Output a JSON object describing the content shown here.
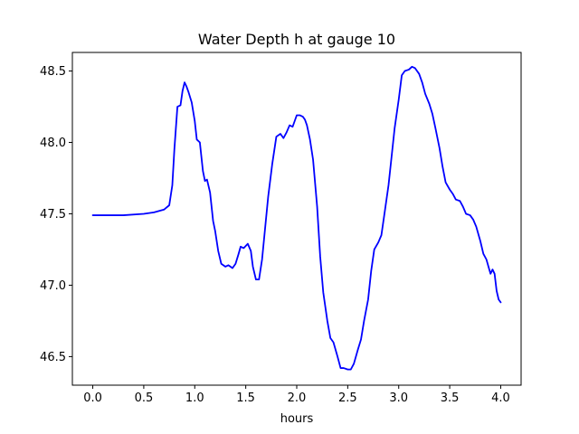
{
  "chart_data": {
    "type": "line",
    "title": "Water Depth h at gauge 10",
    "xlabel": "hours",
    "ylabel": "",
    "xlim": [
      -0.2,
      4.2
    ],
    "ylim": [
      46.3,
      48.63
    ],
    "xticks": [
      0.0,
      0.5,
      1.0,
      1.5,
      2.0,
      2.5,
      3.0,
      3.5,
      4.0
    ],
    "xtick_labels": [
      "0.0",
      "0.5",
      "1.0",
      "1.5",
      "2.0",
      "2.5",
      "3.0",
      "3.5",
      "4.0"
    ],
    "yticks": [
      46.5,
      47.0,
      47.5,
      48.0,
      48.5
    ],
    "ytick_labels": [
      "46.5",
      "47.0",
      "47.5",
      "48.0",
      "48.5"
    ],
    "grid": false,
    "series": [
      {
        "color": "#0000ff",
        "x": [
          0.0,
          0.3,
          0.5,
          0.6,
          0.7,
          0.75,
          0.78,
          0.8,
          0.83,
          0.86,
          0.88,
          0.9,
          0.92,
          0.94,
          0.97,
          1.0,
          1.02,
          1.05,
          1.08,
          1.1,
          1.12,
          1.15,
          1.18,
          1.2,
          1.23,
          1.26,
          1.3,
          1.33,
          1.37,
          1.4,
          1.43,
          1.45,
          1.48,
          1.52,
          1.55,
          1.57,
          1.6,
          1.63,
          1.66,
          1.69,
          1.72,
          1.76,
          1.8,
          1.84,
          1.87,
          1.9,
          1.93,
          1.96,
          2.0,
          2.03,
          2.06,
          2.08,
          2.1,
          2.13,
          2.16,
          2.2,
          2.23,
          2.26,
          2.3,
          2.33,
          2.36,
          2.4,
          2.43,
          2.46,
          2.5,
          2.53,
          2.56,
          2.6,
          2.63,
          2.66,
          2.7,
          2.73,
          2.76,
          2.8,
          2.83,
          2.86,
          2.9,
          2.93,
          2.96,
          3.0,
          3.03,
          3.06,
          3.1,
          3.13,
          3.16,
          3.2,
          3.23,
          3.26,
          3.3,
          3.33,
          3.36,
          3.4,
          3.43,
          3.46,
          3.5,
          3.53,
          3.56,
          3.6,
          3.63,
          3.66,
          3.7,
          3.73,
          3.76,
          3.8,
          3.83,
          3.86,
          3.9,
          3.92,
          3.94,
          3.96,
          3.98,
          4.0
        ],
        "y": [
          47.49,
          47.49,
          47.5,
          47.51,
          47.53,
          47.56,
          47.7,
          47.95,
          48.25,
          48.26,
          48.36,
          48.42,
          48.39,
          48.35,
          48.28,
          48.15,
          48.02,
          48.0,
          47.8,
          47.73,
          47.74,
          47.65,
          47.45,
          47.38,
          47.24,
          47.15,
          47.13,
          47.14,
          47.12,
          47.15,
          47.22,
          47.27,
          47.26,
          47.29,
          47.24,
          47.13,
          47.04,
          47.04,
          47.18,
          47.4,
          47.62,
          47.85,
          48.04,
          48.06,
          48.03,
          48.07,
          48.12,
          48.11,
          48.19,
          48.19,
          48.18,
          48.16,
          48.12,
          48.02,
          47.88,
          47.55,
          47.2,
          46.95,
          46.75,
          46.63,
          46.6,
          46.5,
          46.42,
          46.42,
          46.41,
          46.41,
          46.45,
          46.55,
          46.62,
          46.75,
          46.9,
          47.1,
          47.25,
          47.3,
          47.35,
          47.5,
          47.7,
          47.9,
          48.1,
          48.3,
          48.47,
          48.5,
          48.51,
          48.53,
          48.52,
          48.48,
          48.42,
          48.34,
          48.27,
          48.2,
          48.1,
          47.96,
          47.83,
          47.72,
          47.67,
          47.64,
          47.6,
          47.59,
          47.55,
          47.5,
          47.49,
          47.46,
          47.41,
          47.31,
          47.22,
          47.18,
          47.08,
          47.11,
          47.08,
          46.96,
          46.9,
          46.88
        ]
      }
    ]
  }
}
